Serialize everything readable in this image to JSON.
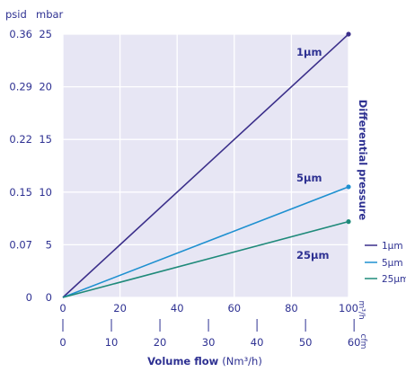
{
  "chart_data": {
    "type": "line",
    "xlabel_bold": "Volume flow",
    "xlabel_unit": "(Nm³/h)",
    "ylabel": "Differential pressure",
    "y_unit_left": "psid",
    "y_unit_right": "mbar",
    "x_unit_primary": "m³/h",
    "x_unit_secondary": "cfm",
    "xlim": [
      0,
      100
    ],
    "ylim": [
      0,
      25
    ],
    "grid": true,
    "legend_position": "right",
    "x_ticks": [
      "0",
      "20",
      "40",
      "60",
      "80",
      "100"
    ],
    "x_ticks_cfm": [
      "0",
      "10",
      "20",
      "30",
      "40",
      "50",
      "60"
    ],
    "y_ticks_mbar": [
      "0",
      "5",
      "10",
      "15",
      "20",
      "25"
    ],
    "y_ticks_psid": [
      "0",
      "0.07",
      "0.15",
      "0.22",
      "0.29",
      "0.36"
    ],
    "series": [
      {
        "name": "1µm",
        "label": "1µm",
        "color": "#3b2f8a",
        "x": [
          0,
          100
        ],
        "y": [
          0,
          25
        ]
      },
      {
        "name": "5µm",
        "label": "5µm",
        "color": "#1e90d0",
        "x": [
          0,
          100
        ],
        "y": [
          0,
          10.5
        ]
      },
      {
        "name": "25µm",
        "label": "25µm",
        "color": "#1f8a7a",
        "x": [
          0,
          100
        ],
        "y": [
          0,
          7.2
        ]
      }
    ]
  }
}
